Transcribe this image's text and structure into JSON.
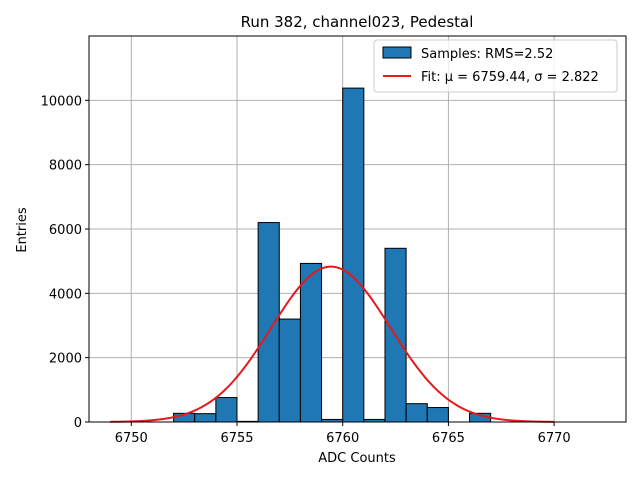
{
  "chart_data": {
    "type": "bar",
    "title": "Run 382, channel023, Pedestal",
    "xlabel": "ADC Counts",
    "ylabel": "Entries",
    "xlim": [
      6748.0,
      6773.4
    ],
    "ylim": [
      0,
      12000
    ],
    "xticks": [
      6750,
      6755,
      6760,
      6765,
      6770
    ],
    "yticks": [
      0,
      2000,
      4000,
      6000,
      8000,
      10000
    ],
    "grid": true,
    "bar_color": "#1f77b4",
    "bar_edge_color": "#000000",
    "fit_color": "#e41a1c",
    "bins": [
      {
        "x0": 6752.0,
        "x1": 6753.0,
        "count": 270
      },
      {
        "x0": 6753.0,
        "x1": 6754.0,
        "count": 260
      },
      {
        "x0": 6754.0,
        "x1": 6755.0,
        "count": 760
      },
      {
        "x0": 6755.0,
        "x1": 6756.0,
        "count": 20
      },
      {
        "x0": 6756.0,
        "x1": 6757.0,
        "count": 6200
      },
      {
        "x0": 6757.0,
        "x1": 6758.0,
        "count": 3200
      },
      {
        "x0": 6758.0,
        "x1": 6759.0,
        "count": 4930
      },
      {
        "x0": 6759.0,
        "x1": 6760.0,
        "count": 80
      },
      {
        "x0": 6760.0,
        "x1": 6761.0,
        "count": 10380
      },
      {
        "x0": 6761.0,
        "x1": 6762.0,
        "count": 80
      },
      {
        "x0": 6762.0,
        "x1": 6763.0,
        "count": 5400
      },
      {
        "x0": 6763.0,
        "x1": 6764.0,
        "count": 570
      },
      {
        "x0": 6764.0,
        "x1": 6765.0,
        "count": 450
      },
      {
        "x0": 6765.0,
        "x1": 6766.0,
        "count": 0
      },
      {
        "x0": 6766.0,
        "x1": 6767.0,
        "count": 270
      }
    ],
    "fit": {
      "mu": 6759.44,
      "sigma": 2.822,
      "amplitude": 4830,
      "x_range": [
        6749.0,
        6770.0
      ]
    },
    "legend": {
      "placement": "top-right",
      "entries": [
        {
          "label": "Samples: RMS=2.52",
          "kind": "bar"
        },
        {
          "label": "Fit: μ = 6759.44, σ = 2.822",
          "kind": "line"
        }
      ]
    }
  }
}
